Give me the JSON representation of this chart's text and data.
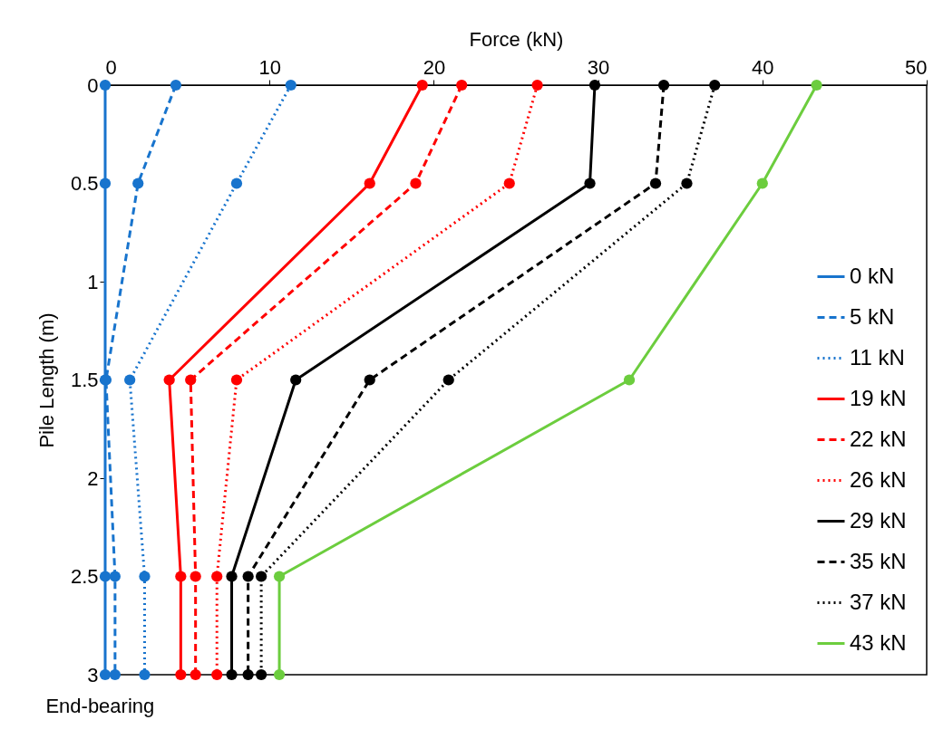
{
  "chart_data": {
    "type": "line",
    "orientation": "horizontal",
    "xlabel": "Force (kN)",
    "ylabel": "Pile Length (m)",
    "x": [
      0,
      0.5,
      1.5,
      2.5,
      3
    ],
    "xlim": [
      0,
      50
    ],
    "xticks": [
      0,
      10,
      20,
      30,
      40,
      50
    ],
    "ylim": [
      3,
      0
    ],
    "yticks": [
      0,
      0.5,
      1,
      1.5,
      2,
      2.5,
      3
    ],
    "grid": false,
    "legend": "bottom right",
    "marker": "circle",
    "annotations": [
      "End-bearing"
    ],
    "series": [
      {
        "name": "0 kN",
        "color": "#1874cd",
        "line_style": "solid",
        "values": [
          0,
          0,
          0,
          0,
          0
        ]
      },
      {
        "name": "5 kN",
        "color": "#1874cd",
        "line_style": "dashed",
        "values": [
          4.3,
          2.0,
          0.05,
          0.6,
          0.6
        ]
      },
      {
        "name": "11 kN",
        "color": "#1874cd",
        "line_style": "dotted",
        "values": [
          11.3,
          8.0,
          1.5,
          2.4,
          2.4
        ]
      },
      {
        "name": "19 kN",
        "color": "#ff0000",
        "line_style": "solid",
        "values": [
          19.3,
          16.1,
          3.9,
          4.6,
          4.6
        ]
      },
      {
        "name": "22 kN",
        "color": "#ff0000",
        "line_style": "dashed",
        "values": [
          21.7,
          18.9,
          5.2,
          5.5,
          5.5
        ]
      },
      {
        "name": "26 kN",
        "color": "#ff0000",
        "line_style": "dotted",
        "values": [
          26.3,
          24.6,
          8.0,
          6.8,
          6.8
        ]
      },
      {
        "name": "29 kN",
        "color": "#000000",
        "line_style": "solid",
        "values": [
          29.8,
          29.5,
          11.6,
          7.7,
          7.7
        ]
      },
      {
        "name": "35 kN",
        "color": "#000000",
        "line_style": "dashed",
        "values": [
          34.0,
          33.5,
          16.1,
          8.7,
          8.7
        ]
      },
      {
        "name": "37 kN",
        "color": "#000000",
        "line_style": "dotted",
        "values": [
          37.1,
          35.4,
          20.9,
          9.5,
          9.5
        ]
      },
      {
        "name": "43 kN",
        "color": "#6ccd3e",
        "line_style": "solid",
        "values": [
          43.3,
          40.0,
          31.9,
          10.6,
          10.6
        ]
      }
    ]
  }
}
